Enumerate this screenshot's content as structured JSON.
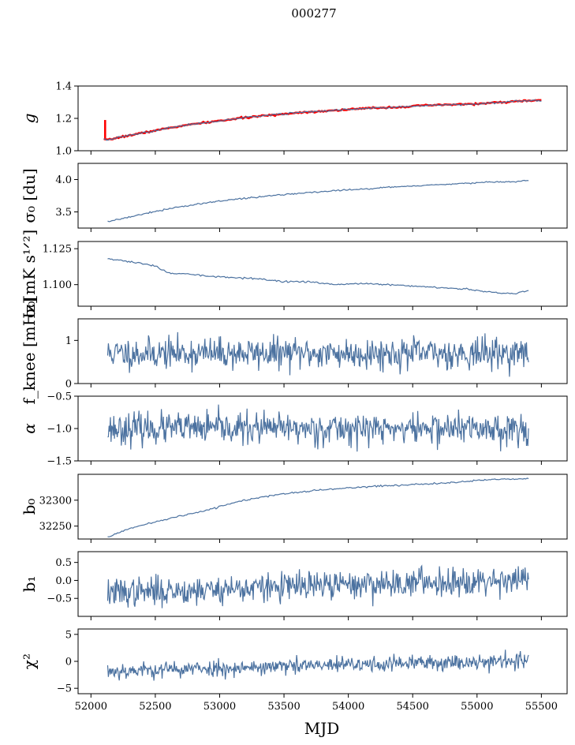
{
  "figure": {
    "title": "000277",
    "xlabel": "MJD",
    "xlim": [
      51900,
      55700
    ],
    "xticks": [
      52000,
      52500,
      53000,
      53500,
      54000,
      54500,
      55000,
      55500
    ],
    "xtick_labels": [
      "52000",
      "52500",
      "53000",
      "53500",
      "54000",
      "54500",
      "55000",
      "55500"
    ]
  },
  "chart_data": [
    {
      "type": "line",
      "ylabel": "g",
      "ylim": [
        1.0,
        1.4
      ],
      "yticks": [
        1.0,
        1.2,
        1.4
      ],
      "ytick_labels": [
        "1.0",
        "1.2",
        "1.4"
      ],
      "series": [
        {
          "color": "#ff0000",
          "style": "band",
          "x": [
            52100,
            52130,
            52200,
            52400,
            52600,
            52800,
            53000,
            53200,
            53400,
            53600,
            53800,
            54000,
            54200,
            54400,
            54600,
            54800,
            55000,
            55200,
            55400,
            55500
          ],
          "y": [
            1.07,
            1.065,
            1.08,
            1.11,
            1.14,
            1.165,
            1.185,
            1.205,
            1.22,
            1.235,
            1.245,
            1.255,
            1.265,
            1.27,
            1.28,
            1.285,
            1.29,
            1.3,
            1.31,
            1.31
          ]
        },
        {
          "color": "#4c72a0",
          "x": [
            52100,
            52130,
            52200,
            52400,
            52600,
            52800,
            53000,
            53200,
            53400,
            53600,
            53800,
            54000,
            54200,
            54400,
            54600,
            54800,
            55000,
            55200,
            55400,
            55500
          ],
          "y": [
            1.07,
            1.065,
            1.08,
            1.11,
            1.14,
            1.165,
            1.185,
            1.205,
            1.22,
            1.235,
            1.245,
            1.255,
            1.265,
            1.27,
            1.28,
            1.285,
            1.29,
            1.3,
            1.31,
            1.31
          ]
        }
      ]
    },
    {
      "type": "line",
      "ylabel": "σ₀ [du]",
      "ylim": [
        3.25,
        4.25
      ],
      "yticks": [
        3.5,
        4.0
      ],
      "ytick_labels": [
        "3.5",
        "4.0"
      ],
      "series": [
        {
          "color": "#4c72a0",
          "x": [
            52130,
            52300,
            52500,
            52700,
            52900,
            53100,
            53300,
            53500,
            53700,
            53900,
            54100,
            54300,
            54500,
            54700,
            54900,
            55100,
            55300,
            55400
          ],
          "y": [
            3.35,
            3.42,
            3.51,
            3.58,
            3.64,
            3.69,
            3.73,
            3.77,
            3.8,
            3.83,
            3.85,
            3.88,
            3.9,
            3.92,
            3.94,
            3.96,
            3.97,
            3.99
          ]
        }
      ]
    },
    {
      "type": "line",
      "ylabel": "σ₀[mK s¹ᐟ²]",
      "ylim": [
        1.085,
        1.13
      ],
      "yticks": [
        1.1,
        1.125
      ],
      "ytick_labels": [
        "1.100",
        "1.125"
      ],
      "series": [
        {
          "color": "#4c72a0",
          "x": [
            52130,
            52300,
            52500,
            52600,
            52800,
            52900,
            53100,
            53300,
            53500,
            53700,
            53900,
            54100,
            54300,
            54500,
            54700,
            54900,
            55000,
            55100,
            55200,
            55300,
            55400
          ],
          "y": [
            1.118,
            1.116,
            1.113,
            1.108,
            1.107,
            1.106,
            1.105,
            1.104,
            1.102,
            1.102,
            1.1,
            1.101,
            1.1,
            1.099,
            1.098,
            1.097,
            1.096,
            1.095,
            1.094,
            1.094,
            1.096
          ]
        }
      ]
    },
    {
      "type": "line",
      "ylabel": "f_knee [mHz]",
      "ylim": [
        0,
        1.5
      ],
      "yticks": [
        0,
        1
      ],
      "ytick_labels": [
        "0",
        "1"
      ],
      "series": [
        {
          "color": "#4c72a0",
          "style": "noise",
          "mean": 0.7,
          "spread": 0.18,
          "xmin": 52130,
          "xmax": 55400,
          "n": 620,
          "seed": 11
        }
      ]
    },
    {
      "type": "line",
      "ylabel": "α",
      "ylim": [
        -1.5,
        -0.5
      ],
      "yticks": [
        -1.5,
        -1.0,
        -0.5
      ],
      "ytick_labels": [
        "−1.5",
        "−1.0",
        "−0.5"
      ],
      "series": [
        {
          "color": "#4c72a0",
          "style": "noise",
          "mean": -1.0,
          "spread": 0.12,
          "xmin": 52130,
          "xmax": 55400,
          "n": 620,
          "seed": 23
        }
      ]
    },
    {
      "type": "line",
      "ylabel": "b₀",
      "ylim": [
        32225,
        32350
      ],
      "yticks": [
        32250,
        32300
      ],
      "ytick_labels": [
        "32250",
        "32300"
      ],
      "series": [
        {
          "color": "#4c72a0",
          "x": [
            52130,
            52300,
            52500,
            52700,
            52900,
            53000,
            53200,
            53400,
            53600,
            53800,
            54000,
            54200,
            54400,
            54600,
            54800,
            55000,
            55200,
            55400
          ],
          "y": [
            32229,
            32245,
            32258,
            32270,
            32280,
            32288,
            32300,
            32309,
            32315,
            32320,
            32324,
            32327,
            32329,
            32331,
            32334,
            32338,
            32341,
            32342
          ]
        }
      ]
    },
    {
      "type": "line",
      "ylabel": "b₁",
      "ylim": [
        -1.0,
        0.8
      ],
      "yticks": [
        -0.5,
        0.0,
        0.5
      ],
      "ytick_labels": [
        "−0.5",
        "0.0",
        "0.5"
      ],
      "series": [
        {
          "color": "#4c72a0",
          "style": "noise",
          "mean_start": -0.35,
          "mean_end": 0.05,
          "spread": 0.2,
          "xmin": 52130,
          "xmax": 55400,
          "n": 620,
          "seed": 37
        }
      ]
    },
    {
      "type": "line",
      "ylabel": "χ²",
      "ylim": [
        -6,
        6
      ],
      "yticks": [
        -5,
        0,
        5
      ],
      "ytick_labels": [
        "−5",
        "0",
        "5"
      ],
      "series": [
        {
          "color": "#4c72a0",
          "style": "noise",
          "mean_start": -1.8,
          "mean_end": 0.2,
          "spread": 0.75,
          "xmin": 52130,
          "xmax": 55400,
          "n": 620,
          "seed": 53
        }
      ]
    }
  ]
}
